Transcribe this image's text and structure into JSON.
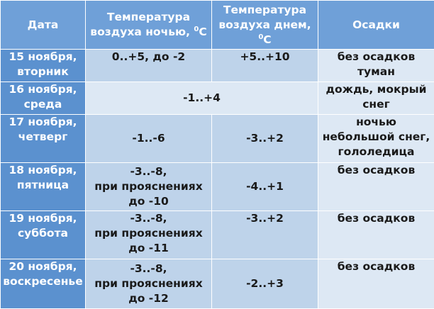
{
  "header": {
    "date": "Дата",
    "night_line1": "Температура",
    "night_line2": "воздуха ночью, ",
    "night_deg": "0",
    "night_unit": "C",
    "day_line1": "Температура",
    "day_line2": "воздуха днем,",
    "day_deg": "0",
    "day_unit": "C",
    "precip": "Осадки"
  },
  "rows": [
    {
      "date_line1": "15 ноября,",
      "date_line2": "вторник",
      "night_line1": "0..+5, до -2",
      "day": "+5..+10",
      "precip_line1": "без осадков",
      "precip_line2": "туман"
    },
    {
      "date_line1": "16 ноября,",
      "date_line2": "среда",
      "temp_merged": "-1..+4",
      "precip_line1": "дождь, мокрый",
      "precip_line2": "снег"
    },
    {
      "date_line1": "17 ноября,",
      "date_line2": "четверг",
      "night_line1": "-1..-6",
      "day": "-3..+2",
      "precip_line1": "ночью",
      "precip_line2": "небольшой снег,",
      "precip_line3": "гололедица"
    },
    {
      "date_line1": "18 ноября,",
      "date_line2": "пятница",
      "night_line1": "-3..-8,",
      "night_line2": "при прояснениях",
      "night_line3": "до -10",
      "day": "-4..+1",
      "precip_line1": "без осадков"
    },
    {
      "date_line1": "19 ноября,",
      "date_line2": "суббота",
      "night_line1": "-3..-8,",
      "night_line2": "при прояснениях",
      "night_line3": "до -11",
      "day": "-3..+2",
      "precip_line1": "без осадков"
    },
    {
      "date_line1": "20 ноября,",
      "date_line2": "воскресенье",
      "night_line1": "-3..-8,",
      "night_line2": "при прояснениях",
      "night_line3": "до -12",
      "day": "-2..+3",
      "precip_line1": "без осадков"
    }
  ]
}
